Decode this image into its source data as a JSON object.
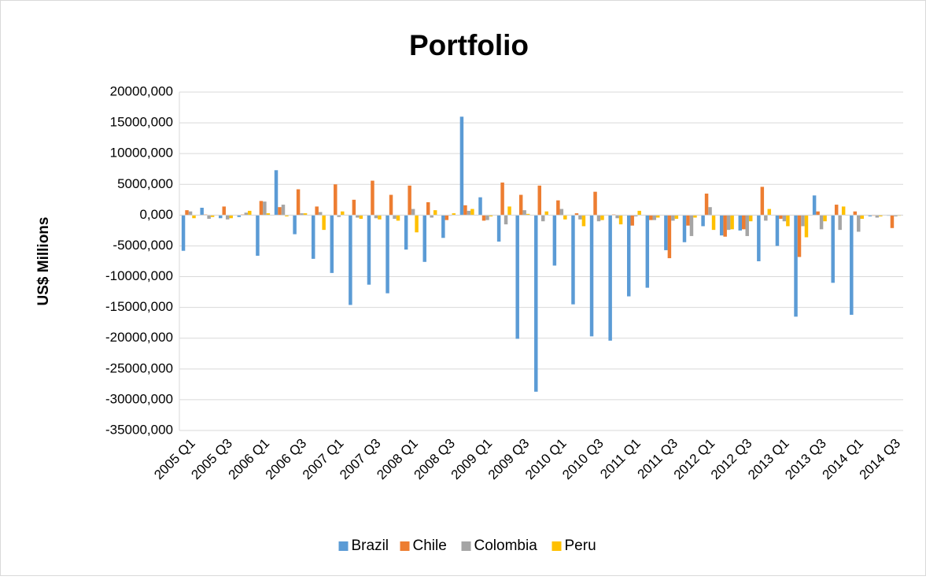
{
  "chart_data": {
    "type": "bar",
    "title": "Portfolio",
    "y_label": "US$ Millions",
    "categories": [
      "2005 Q1",
      null,
      "2005 Q3",
      null,
      "2006 Q1",
      null,
      "2006 Q3",
      null,
      "2007 Q1",
      null,
      "2007 Q3",
      null,
      "2008 Q1",
      null,
      "2008 Q3",
      null,
      "2009 Q1",
      null,
      "2009 Q3",
      null,
      "2010 Q1",
      null,
      "2010 Q3",
      null,
      "2011 Q1",
      null,
      "2011 Q3",
      null,
      "2012 Q1",
      null,
      "2012 Q3",
      null,
      "2013 Q1",
      null,
      "2013 Q3",
      null,
      "2014 Q1",
      null,
      "2014 Q3"
    ],
    "series": [
      {
        "name": "Brazil",
        "color": "#5b9bd5",
        "values": [
          -5800,
          1200,
          -500,
          -300,
          -6600,
          7300,
          -3100,
          -7100,
          -9400,
          -14600,
          -11300,
          -12700,
          -5600,
          -7600,
          -3700,
          16000,
          2900,
          -4300,
          -20100,
          -28700,
          -8200,
          -14500,
          -19700,
          -20400,
          -13200,
          -11800,
          -5700,
          -4400,
          -1800,
          -3300,
          -2500,
          -7500,
          -5000,
          -16500,
          3200,
          -11000,
          -16200,
          -200,
          -100
        ]
      },
      {
        "name": "Chile",
        "color": "#ed7d31",
        "values": [
          800,
          100,
          1400,
          100,
          2300,
          1300,
          4200,
          1400,
          5000,
          2500,
          5600,
          3300,
          4800,
          2100,
          -800,
          1600,
          -900,
          5300,
          3300,
          4800,
          2400,
          300,
          3800,
          100,
          -1700,
          -800,
          -7000,
          -1700,
          3500,
          -3500,
          -2300,
          4600,
          -600,
          -6800,
          600,
          1700,
          600,
          -100,
          -2100
        ]
      },
      {
        "name": "Colombia",
        "color": "#a5a5a5",
        "values": [
          600,
          -600,
          -700,
          400,
          2200,
          1700,
          300,
          500,
          -300,
          -400,
          -500,
          -600,
          1000,
          -400,
          -100,
          700,
          -800,
          -1500,
          800,
          -1000,
          1000,
          -700,
          -1000,
          -500,
          -200,
          -800,
          -900,
          -3400,
          1300,
          -2400,
          -3400,
          -900,
          -1000,
          -1800,
          -2300,
          -2400,
          -2700,
          -400,
          -200
        ]
      },
      {
        "name": "Peru",
        "color": "#ffc000",
        "values": [
          -500,
          -300,
          -500,
          700,
          300,
          -200,
          300,
          -2400,
          600,
          -600,
          -700,
          -900,
          -2800,
          800,
          300,
          1000,
          -200,
          1400,
          200,
          600,
          -700,
          -1800,
          -800,
          -1500,
          700,
          -400,
          -600,
          -400,
          -2400,
          -2300,
          -1000,
          1000,
          -1800,
          -3600,
          -1000,
          1400,
          -600,
          -200,
          -100
        ]
      }
    ],
    "ylim": [
      -35000,
      20000
    ],
    "yticks": [
      {
        "value": -35000,
        "label": "-35000,000"
      },
      {
        "value": -30000,
        "label": "-30000,000"
      },
      {
        "value": -25000,
        "label": "-25000,000"
      },
      {
        "value": -20000,
        "label": "-20000,000"
      },
      {
        "value": -15000,
        "label": "-15000,000"
      },
      {
        "value": -10000,
        "label": "-10000,000"
      },
      {
        "value": -5000,
        "label": "-5000,000"
      },
      {
        "value": 0,
        "label": "0,000"
      },
      {
        "value": 5000,
        "label": "5000,000"
      },
      {
        "value": 10000,
        "label": "10000,000"
      },
      {
        "value": 15000,
        "label": "15000,000"
      },
      {
        "value": 20000,
        "label": "20000,000"
      }
    ],
    "grid": true,
    "legend": "bottom"
  }
}
